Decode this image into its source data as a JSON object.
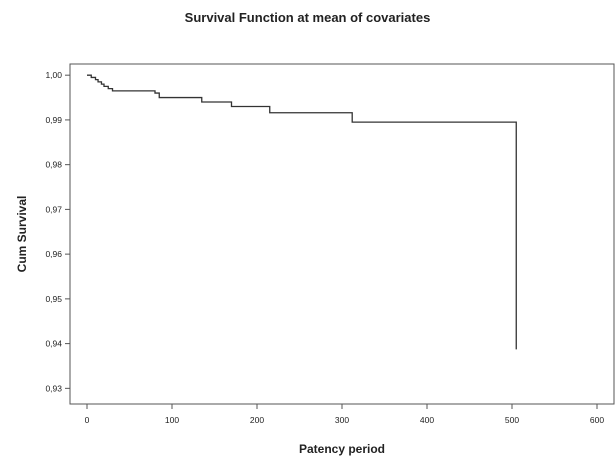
{
  "chart_data": {
    "type": "line",
    "title": "Survival Function at mean of covariates",
    "xlabel": "Patency period",
    "ylabel": "Cum Survival",
    "xlim": [
      -20,
      620
    ],
    "ylim": [
      0.9265,
      1.0025
    ],
    "x_ticks": [
      0,
      100,
      200,
      300,
      400,
      500,
      600
    ],
    "x_tick_labels": [
      "0",
      "100",
      "200",
      "300",
      "400",
      "500",
      "600"
    ],
    "y_ticks": [
      0.93,
      0.94,
      0.95,
      0.96,
      0.97,
      0.98,
      0.99,
      1.0
    ],
    "y_tick_labels": [
      "0,93",
      "0,94",
      "0,95",
      "0,96",
      "0,97",
      "0,98",
      "0,99",
      "1,00"
    ],
    "grid": false,
    "legend": "none",
    "line_color": "#333333",
    "step": true,
    "series": [
      {
        "x": [
          0,
          5,
          10,
          13,
          17,
          20,
          25,
          30,
          80,
          85,
          135,
          170,
          215,
          312,
          505,
          505
        ],
        "y": [
          1.0,
          0.9995,
          0.999,
          0.9985,
          0.998,
          0.9975,
          0.997,
          0.9965,
          0.996,
          0.995,
          0.994,
          0.993,
          0.9916,
          0.9895,
          0.9895,
          0.9387
        ]
      }
    ]
  }
}
